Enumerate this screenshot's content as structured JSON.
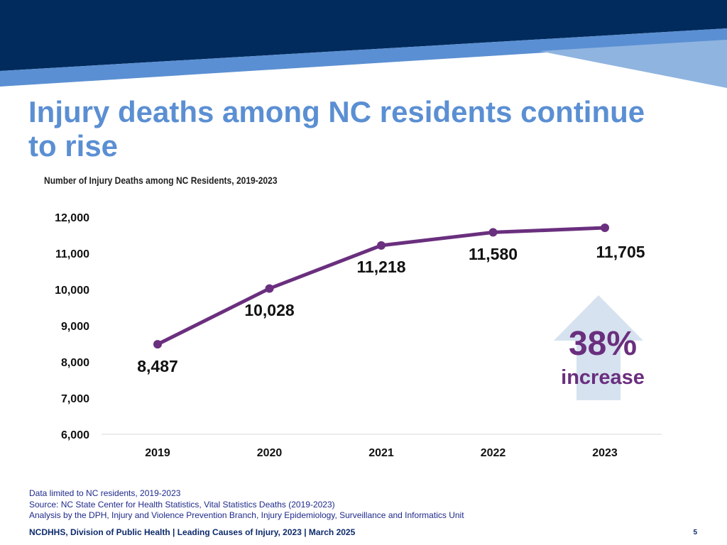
{
  "slide": {
    "title": "Injury deaths among NC residents continue to rise",
    "colors": {
      "navy": "#002b5c",
      "blue_band": "#5b8fd3",
      "light_band": "#8fb4e0",
      "series": "#6a2f7e",
      "arrow": "#d6e2ef"
    }
  },
  "chart_data": {
    "type": "line",
    "title": "Number of Injury Deaths among NC Residents, 2019-2023",
    "categories": [
      "2019",
      "2020",
      "2021",
      "2022",
      "2023"
    ],
    "series": [
      {
        "values": [
          8487,
          10028,
          11218,
          11580,
          11705
        ]
      }
    ],
    "data_labels": [
      "8,487",
      "10,028",
      "11,218",
      "11,580",
      "11,705"
    ],
    "ylim": [
      6000,
      12000
    ],
    "yticks": [
      6000,
      7000,
      8000,
      9000,
      10000,
      11000,
      12000
    ],
    "ytick_labels": [
      "6,000",
      "7,000",
      "8,000",
      "9,000",
      "10,000",
      "11,000",
      "12,000"
    ],
    "grid": false,
    "annotation": {
      "value": "38%",
      "label": "increase",
      "icon": "up-arrow-icon"
    }
  },
  "footnotes": [
    "Data limited to NC residents, 2019-2023",
    "Source: NC State Center for Health Statistics, Vital Statistics Deaths (2019-2023)",
    "Analysis by the DPH, Injury and Violence Prevention Branch, Injury Epidemiology, Surveillance and Informatics Unit"
  ],
  "footer": {
    "text": "NCDHHS, Division of Public Health | Leading Causes of Injury, 2023 | March 2025",
    "page_number": "5"
  }
}
